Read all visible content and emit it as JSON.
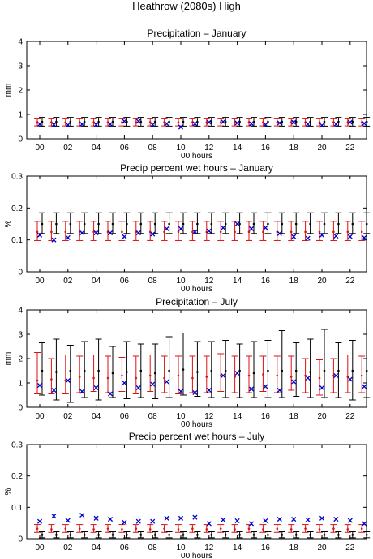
{
  "figure_title": "Heathrow (2080s) High",
  "colors": {
    "red": "#dd1111",
    "black": "#000000",
    "blue": "#0000cc"
  },
  "chart_data": [
    {
      "type": "errorbar",
      "title": "Precipitation – January",
      "xlabel": "00 hours",
      "ylabel": "mm",
      "ylim": [
        0,
        4
      ],
      "yticks": [
        0,
        1,
        2,
        3,
        4
      ],
      "xticks": [
        "00",
        "02",
        "04",
        "06",
        "08",
        "10",
        "12",
        "14",
        "16",
        "18",
        "20",
        "22"
      ],
      "x": [
        0,
        1,
        2,
        3,
        4,
        5,
        6,
        7,
        8,
        9,
        10,
        11,
        12,
        13,
        14,
        15,
        16,
        17,
        18,
        19,
        20,
        21,
        22,
        23
      ],
      "red_series": {
        "mid": [
          0.68,
          0.68,
          0.68,
          0.68,
          0.68,
          0.68,
          0.68,
          0.68,
          0.68,
          0.68,
          0.68,
          0.68,
          0.68,
          0.68,
          0.68,
          0.68,
          0.68,
          0.68,
          0.68,
          0.68,
          0.68,
          0.68,
          0.68,
          0.68
        ],
        "low": [
          0.53,
          0.53,
          0.53,
          0.53,
          0.53,
          0.53,
          0.53,
          0.53,
          0.53,
          0.53,
          0.53,
          0.53,
          0.53,
          0.53,
          0.53,
          0.53,
          0.53,
          0.53,
          0.53,
          0.53,
          0.53,
          0.53,
          0.53,
          0.53
        ],
        "high": [
          0.82,
          0.82,
          0.82,
          0.82,
          0.82,
          0.82,
          0.82,
          0.82,
          0.82,
          0.82,
          0.82,
          0.82,
          0.82,
          0.82,
          0.82,
          0.82,
          0.82,
          0.82,
          0.82,
          0.82,
          0.82,
          0.82,
          0.82,
          0.82
        ]
      },
      "black_series": {
        "mid": [
          0.7,
          0.7,
          0.7,
          0.7,
          0.7,
          0.7,
          0.7,
          0.7,
          0.7,
          0.7,
          0.7,
          0.7,
          0.7,
          0.7,
          0.7,
          0.7,
          0.7,
          0.7,
          0.7,
          0.7,
          0.7,
          0.7,
          0.7,
          0.7
        ],
        "low": [
          0.52,
          0.52,
          0.52,
          0.52,
          0.52,
          0.52,
          0.52,
          0.52,
          0.52,
          0.52,
          0.52,
          0.52,
          0.52,
          0.52,
          0.52,
          0.52,
          0.52,
          0.52,
          0.52,
          0.52,
          0.52,
          0.52,
          0.52,
          0.52
        ],
        "high": [
          0.88,
          0.88,
          0.88,
          0.88,
          0.88,
          0.88,
          0.88,
          0.88,
          0.88,
          0.88,
          0.88,
          0.88,
          0.88,
          0.88,
          0.88,
          0.88,
          0.88,
          0.88,
          0.88,
          0.88,
          0.88,
          0.88,
          0.88,
          0.88
        ]
      },
      "observed": [
        0.6,
        0.58,
        0.57,
        0.6,
        0.58,
        0.6,
        0.72,
        0.72,
        0.58,
        0.62,
        0.48,
        0.62,
        0.68,
        0.7,
        0.65,
        0.62,
        0.58,
        0.65,
        0.68,
        0.6,
        0.55,
        0.6,
        0.68,
        0.63
      ]
    },
    {
      "type": "errorbar",
      "title": "Precip percent wet hours – January",
      "xlabel": "00 hours",
      "ylabel": "%",
      "ylim": [
        0,
        0.3
      ],
      "yticks": [
        0,
        0.1,
        0.2,
        0.3
      ],
      "xticks": [
        "00",
        "02",
        "04",
        "06",
        "08",
        "10",
        "12",
        "14",
        "16",
        "18",
        "20",
        "22"
      ],
      "x": [
        0,
        1,
        2,
        3,
        4,
        5,
        6,
        7,
        8,
        9,
        10,
        11,
        12,
        13,
        14,
        15,
        16,
        17,
        18,
        19,
        20,
        21,
        22,
        23
      ],
      "red_series": {
        "mid": [
          0.125,
          0.125,
          0.125,
          0.125,
          0.125,
          0.125,
          0.125,
          0.125,
          0.125,
          0.125,
          0.125,
          0.125,
          0.125,
          0.125,
          0.125,
          0.125,
          0.125,
          0.125,
          0.125,
          0.125,
          0.125,
          0.125,
          0.125,
          0.125
        ],
        "low": [
          0.098,
          0.098,
          0.098,
          0.098,
          0.098,
          0.098,
          0.098,
          0.098,
          0.098,
          0.098,
          0.098,
          0.098,
          0.098,
          0.098,
          0.098,
          0.098,
          0.098,
          0.098,
          0.098,
          0.098,
          0.098,
          0.098,
          0.098,
          0.098
        ],
        "high": [
          0.158,
          0.158,
          0.158,
          0.158,
          0.158,
          0.158,
          0.158,
          0.158,
          0.158,
          0.158,
          0.158,
          0.158,
          0.158,
          0.158,
          0.158,
          0.158,
          0.158,
          0.158,
          0.158,
          0.158,
          0.158,
          0.158,
          0.158,
          0.158
        ]
      },
      "black_series": {
        "mid": [
          0.15,
          0.15,
          0.15,
          0.15,
          0.15,
          0.15,
          0.15,
          0.15,
          0.15,
          0.15,
          0.15,
          0.15,
          0.15,
          0.15,
          0.15,
          0.15,
          0.15,
          0.15,
          0.15,
          0.15,
          0.15,
          0.15,
          0.15,
          0.15
        ],
        "low": [
          0.12,
          0.12,
          0.12,
          0.12,
          0.12,
          0.12,
          0.12,
          0.12,
          0.12,
          0.12,
          0.12,
          0.12,
          0.12,
          0.12,
          0.12,
          0.12,
          0.12,
          0.12,
          0.12,
          0.12,
          0.12,
          0.12,
          0.12,
          0.12
        ],
        "high": [
          0.185,
          0.185,
          0.185,
          0.185,
          0.185,
          0.185,
          0.185,
          0.185,
          0.185,
          0.185,
          0.185,
          0.185,
          0.185,
          0.185,
          0.185,
          0.185,
          0.185,
          0.185,
          0.185,
          0.185,
          0.185,
          0.185,
          0.185,
          0.185
        ]
      },
      "observed": [
        0.115,
        0.1,
        0.107,
        0.122,
        0.122,
        0.122,
        0.11,
        0.122,
        0.118,
        0.135,
        0.135,
        0.125,
        0.128,
        0.138,
        0.15,
        0.135,
        0.138,
        0.12,
        0.11,
        0.105,
        0.115,
        0.112,
        0.11,
        0.107
      ]
    },
    {
      "type": "errorbar",
      "title": "Precipitation – July",
      "xlabel": "00 hours",
      "ylabel": "mm",
      "ylim": [
        0,
        4
      ],
      "yticks": [
        0,
        1,
        2,
        3,
        4
      ],
      "xticks": [
        "00",
        "02",
        "04",
        "06",
        "08",
        "10",
        "12",
        "14",
        "16",
        "18",
        "20",
        "22"
      ],
      "x": [
        0,
        1,
        2,
        3,
        4,
        5,
        6,
        7,
        8,
        9,
        10,
        11,
        12,
        13,
        14,
        15,
        16,
        17,
        18,
        19,
        20,
        21,
        22,
        23
      ],
      "red_series": {
        "mid": [
          1.1,
          1.15,
          1.1,
          1.25,
          1.2,
          1.2,
          1.3,
          1.2,
          1.3,
          1.2,
          1.3,
          1.2,
          1.25,
          1.3,
          1.25,
          1.3,
          1.35,
          1.3,
          1.25,
          1.3,
          1.2,
          1.3,
          1.25,
          1.3
        ],
        "low": [
          0.55,
          0.55,
          0.55,
          0.6,
          0.65,
          0.6,
          0.65,
          0.55,
          0.65,
          0.6,
          0.55,
          0.6,
          0.6,
          0.65,
          0.6,
          0.6,
          0.65,
          0.6,
          0.7,
          0.6,
          0.5,
          0.6,
          0.6,
          0.6
        ],
        "high": [
          2.25,
          2.0,
          2.15,
          2.1,
          2.15,
          2.1,
          2.05,
          2.1,
          2.15,
          2.1,
          2.1,
          2.1,
          2.1,
          2.2,
          2.1,
          2.1,
          2.1,
          2.1,
          2.1,
          2.0,
          1.95,
          2.0,
          2.15,
          2.1
        ]
      },
      "black_series": {
        "mid": [
          1.5,
          1.45,
          1.5,
          1.5,
          1.5,
          1.4,
          1.45,
          1.5,
          1.4,
          1.5,
          1.55,
          1.45,
          1.5,
          1.5,
          1.5,
          1.4,
          1.5,
          1.5,
          1.5,
          1.45,
          1.5,
          1.5,
          1.5,
          1.5
        ],
        "low": [
          0.5,
          0.3,
          0.2,
          0.4,
          0.3,
          0.4,
          0.35,
          0.4,
          0.35,
          0.4,
          0.5,
          0.45,
          0.4,
          0.4,
          0.4,
          0.4,
          0.4,
          0.4,
          0.45,
          0.4,
          0.4,
          0.4,
          0.3,
          0.4
        ],
        "high": [
          2.65,
          2.8,
          2.55,
          2.7,
          2.8,
          2.5,
          2.7,
          2.6,
          2.6,
          2.9,
          3.05,
          2.7,
          2.7,
          2.75,
          2.6,
          2.7,
          2.75,
          3.15,
          2.65,
          2.8,
          3.2,
          2.65,
          2.75,
          2.85
        ]
      },
      "observed": [
        0.9,
        0.7,
        1.1,
        0.65,
        0.8,
        0.55,
        1.0,
        0.8,
        0.95,
        1.05,
        0.65,
        0.6,
        0.7,
        1.3,
        1.4,
        0.75,
        0.85,
        0.7,
        1.05,
        1.2,
        0.8,
        1.3,
        1.15,
        0.85
      ]
    },
    {
      "type": "errorbar",
      "title": "Precip percent wet hours – July",
      "xlabel": "00 hours",
      "ylabel": "%",
      "ylim": [
        0,
        0.3
      ],
      "yticks": [
        0,
        0.1,
        0.2,
        0.3
      ],
      "xticks": [
        "00",
        "02",
        "04",
        "06",
        "08",
        "10",
        "12",
        "14",
        "16",
        "18",
        "20",
        "22"
      ],
      "x": [
        0,
        1,
        2,
        3,
        4,
        5,
        6,
        7,
        8,
        9,
        10,
        11,
        12,
        13,
        14,
        15,
        16,
        17,
        18,
        19,
        20,
        21,
        22,
        23
      ],
      "red_series": {
        "mid": [
          0.032,
          0.03,
          0.032,
          0.032,
          0.03,
          0.032,
          0.03,
          0.032,
          0.03,
          0.032,
          0.03,
          0.032,
          0.03,
          0.032,
          0.03,
          0.032,
          0.03,
          0.032,
          0.03,
          0.032,
          0.03,
          0.032,
          0.03,
          0.032
        ],
        "low": [
          0.02,
          0.02,
          0.02,
          0.02,
          0.02,
          0.02,
          0.02,
          0.02,
          0.02,
          0.02,
          0.02,
          0.02,
          0.02,
          0.02,
          0.02,
          0.02,
          0.02,
          0.02,
          0.02,
          0.02,
          0.02,
          0.02,
          0.02,
          0.02
        ],
        "high": [
          0.045,
          0.045,
          0.045,
          0.045,
          0.045,
          0.045,
          0.045,
          0.045,
          0.045,
          0.045,
          0.045,
          0.045,
          0.045,
          0.045,
          0.045,
          0.045,
          0.045,
          0.045,
          0.045,
          0.045,
          0.045,
          0.045,
          0.045,
          0.045
        ]
      },
      "black_series": {
        "mid": [
          0.012,
          0.012,
          0.012,
          0.012,
          0.012,
          0.012,
          0.012,
          0.012,
          0.012,
          0.012,
          0.012,
          0.012,
          0.012,
          0.012,
          0.012,
          0.012,
          0.012,
          0.012,
          0.012,
          0.012,
          0.012,
          0.012,
          0.012,
          0.012
        ],
        "low": [
          0.003,
          0.003,
          0.003,
          0.003,
          0.003,
          0.003,
          0.003,
          0.003,
          0.003,
          0.003,
          0.003,
          0.003,
          0.003,
          0.003,
          0.003,
          0.003,
          0.003,
          0.003,
          0.003,
          0.003,
          0.003,
          0.003,
          0.003,
          0.003
        ],
        "high": [
          0.022,
          0.022,
          0.022,
          0.022,
          0.022,
          0.022,
          0.022,
          0.022,
          0.022,
          0.022,
          0.022,
          0.022,
          0.022,
          0.022,
          0.022,
          0.022,
          0.022,
          0.022,
          0.022,
          0.022,
          0.022,
          0.022,
          0.022,
          0.022
        ]
      },
      "observed": [
        0.055,
        0.072,
        0.058,
        0.075,
        0.065,
        0.062,
        0.052,
        0.055,
        0.055,
        0.065,
        0.065,
        0.068,
        0.048,
        0.06,
        0.057,
        0.048,
        0.057,
        0.062,
        0.062,
        0.06,
        0.065,
        0.062,
        0.058,
        0.048
      ]
    }
  ]
}
